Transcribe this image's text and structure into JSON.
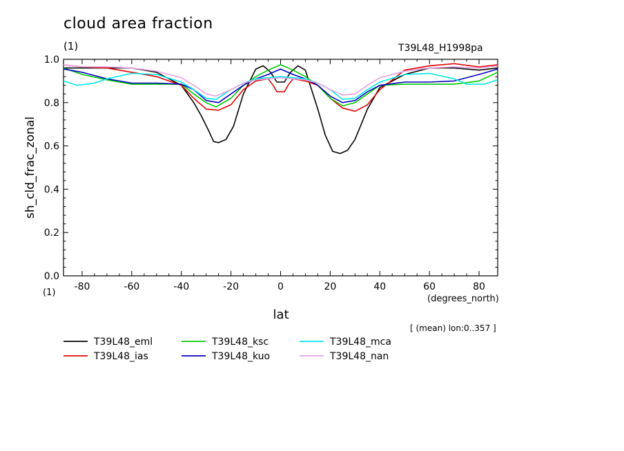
{
  "chart_data": {
    "type": "line",
    "title": "cloud area fraction",
    "title_units": "(1)",
    "subtitle_right": "T39L48_H1998pa",
    "xlabel": "lat",
    "xunits": "(degrees_north)",
    "ylabel": "sh_cld_frac_zonal",
    "yunits": "(1)",
    "note": "[ (mean) lon:0..357 ]",
    "xlim": [
      -87.5,
      87.5
    ],
    "ylim": [
      0.0,
      1.0
    ],
    "xticks": [
      -80,
      -60,
      -40,
      -20,
      0,
      20,
      40,
      60,
      80
    ],
    "xtick_labels": [
      "-80",
      "-60",
      "-40",
      "-20",
      "0",
      "20",
      "40",
      "60",
      "80"
    ],
    "yticks": [
      0.0,
      0.2,
      0.4,
      0.6,
      0.8,
      1.0
    ],
    "ytick_labels": [
      "0.0",
      "0.2",
      "0.4",
      "0.6",
      "0.8",
      "1.0"
    ],
    "grid": false,
    "legend_position": "bottom",
    "series": [
      {
        "name": "T39L48_eml",
        "color": "#000000",
        "x": [
          -87.5,
          -80,
          -70,
          -60,
          -50,
          -40,
          -35,
          -32,
          -29,
          -27,
          -25,
          -22,
          -19,
          -15,
          -10,
          -7,
          -4,
          -1.5,
          1.5,
          4,
          7,
          10,
          15,
          18,
          21,
          24,
          27,
          30,
          35,
          40,
          50,
          60,
          70,
          80,
          87.5
        ],
        "y": [
          0.96,
          0.96,
          0.96,
          0.96,
          0.94,
          0.88,
          0.8,
          0.74,
          0.67,
          0.62,
          0.615,
          0.63,
          0.69,
          0.84,
          0.955,
          0.97,
          0.94,
          0.895,
          0.895,
          0.94,
          0.97,
          0.95,
          0.77,
          0.65,
          0.575,
          0.565,
          0.58,
          0.63,
          0.77,
          0.87,
          0.93,
          0.96,
          0.96,
          0.95,
          0.96
        ]
      },
      {
        "name": "T39L48_ias",
        "color": "#e00000",
        "x": [
          -87.5,
          -80,
          -70,
          -60,
          -50,
          -40,
          -35,
          -30,
          -25,
          -20,
          -15,
          -10,
          -5,
          -3,
          -1.5,
          1.5,
          3,
          5,
          10,
          15,
          20,
          25,
          30,
          35,
          40,
          50,
          60,
          70,
          80,
          87.5
        ],
        "y": [
          0.975,
          0.965,
          0.96,
          0.94,
          0.92,
          0.88,
          0.82,
          0.77,
          0.765,
          0.79,
          0.86,
          0.9,
          0.91,
          0.88,
          0.85,
          0.85,
          0.88,
          0.91,
          0.9,
          0.88,
          0.82,
          0.775,
          0.76,
          0.79,
          0.86,
          0.95,
          0.97,
          0.98,
          0.965,
          0.975
        ]
      },
      {
        "name": "T39L48_ksc",
        "color": "#00c800",
        "x": [
          -87.5,
          -80,
          -70,
          -60,
          -50,
          -40,
          -35,
          -30,
          -26,
          -20,
          -15,
          -10,
          -5,
          0,
          5,
          10,
          15,
          20,
          25,
          30,
          35,
          40,
          50,
          60,
          70,
          80,
          87.5
        ],
        "y": [
          0.96,
          0.93,
          0.905,
          0.885,
          0.885,
          0.885,
          0.84,
          0.8,
          0.78,
          0.82,
          0.88,
          0.92,
          0.95,
          0.975,
          0.95,
          0.92,
          0.88,
          0.82,
          0.785,
          0.8,
          0.84,
          0.88,
          0.885,
          0.885,
          0.885,
          0.9,
          0.94
        ]
      },
      {
        "name": "T39L48_kuo",
        "color": "#0000c0",
        "x": [
          -87.5,
          -80,
          -70,
          -60,
          -50,
          -40,
          -35,
          -30,
          -25,
          -20,
          -15,
          -10,
          -5,
          0,
          5,
          10,
          15,
          20,
          25,
          30,
          35,
          40,
          50,
          60,
          70,
          80,
          87.5
        ],
        "y": [
          0.955,
          0.94,
          0.91,
          0.89,
          0.89,
          0.885,
          0.86,
          0.81,
          0.8,
          0.84,
          0.88,
          0.91,
          0.93,
          0.955,
          0.93,
          0.91,
          0.88,
          0.83,
          0.8,
          0.81,
          0.85,
          0.88,
          0.895,
          0.895,
          0.9,
          0.93,
          0.955
        ]
      },
      {
        "name": "T39L48_mca",
        "color": "#00e8e8",
        "x": [
          -87.5,
          -82,
          -75,
          -70,
          -60,
          -50,
          -40,
          -35,
          -30,
          -26,
          -20,
          -15,
          -10,
          -5,
          0,
          5,
          10,
          15,
          20,
          25,
          30,
          35,
          40,
          50,
          60,
          70,
          75,
          82,
          87.5
        ],
        "y": [
          0.9,
          0.88,
          0.89,
          0.91,
          0.935,
          0.93,
          0.895,
          0.86,
          0.82,
          0.815,
          0.86,
          0.89,
          0.91,
          0.915,
          0.92,
          0.915,
          0.91,
          0.89,
          0.86,
          0.815,
          0.82,
          0.86,
          0.895,
          0.93,
          0.935,
          0.91,
          0.885,
          0.885,
          0.905
        ]
      },
      {
        "name": "T39L48_nan",
        "color": "#e8a0e0",
        "x": [
          -87.5,
          -80,
          -70,
          -60,
          -50,
          -40,
          -35,
          -30,
          -26,
          -20,
          -15,
          -10,
          -5,
          0,
          5,
          10,
          15,
          20,
          25,
          30,
          35,
          40,
          50,
          60,
          70,
          80,
          87.5
        ],
        "y": [
          0.975,
          0.965,
          0.965,
          0.96,
          0.945,
          0.915,
          0.88,
          0.84,
          0.83,
          0.86,
          0.89,
          0.905,
          0.91,
          0.915,
          0.91,
          0.905,
          0.89,
          0.86,
          0.835,
          0.84,
          0.88,
          0.915,
          0.945,
          0.96,
          0.965,
          0.96,
          0.97
        ]
      }
    ]
  }
}
